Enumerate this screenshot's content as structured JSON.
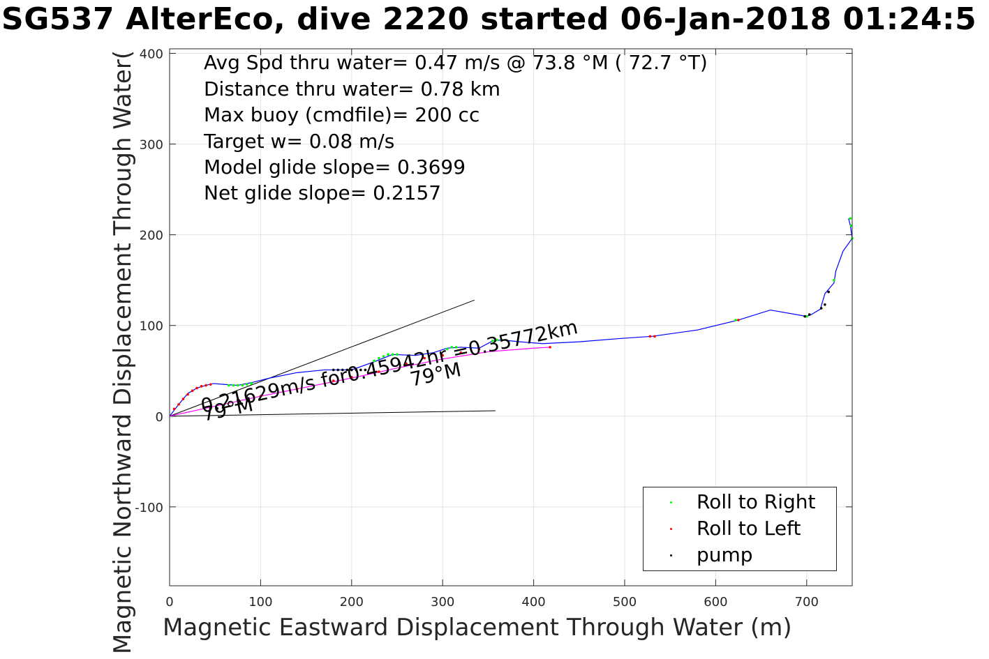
{
  "title": "SG537 AlterEco, dive 2220 started 06-Jan-2018 01:24:5",
  "info_lines": [
    "Avg Spd thru water=  0.47 m/s @  73.8 °M ( 72.7 °T)",
    "Distance thru water=  0.78 km",
    "Max buoy (cmdfile)= 200 cc",
    "Target w= 0.08 m/s",
    "Model glide slope= 0.3699",
    "Net glide slope= 0.2157"
  ],
  "annotations": {
    "heading_1": "79°M",
    "heading_2": "79°M",
    "speed_text": "0.21629m/s for0.45942hr =0.35772km"
  },
  "legend": [
    {
      "label": "Roll to Right",
      "color": "#00ff00"
    },
    {
      "label": "Roll to Left",
      "color": "#ff0000"
    },
    {
      "label": "pump",
      "color": "#000000"
    }
  ],
  "chart_data": {
    "type": "line",
    "title": "SG537 AlterEco, dive 2220 started 06-Jan-2018 01:24:5",
    "xlabel": "Magnetic Eastward Displacement Through Water (m)",
    "ylabel": "Magnetic Northward Displacement Through Water(",
    "xlim": [
      0,
      750
    ],
    "ylim": [
      -187,
      405
    ],
    "xticks": [
      0,
      100,
      200,
      300,
      400,
      500,
      600,
      700
    ],
    "yticks": [
      -100,
      0,
      100,
      200,
      300,
      400
    ],
    "grid": true,
    "legend_position": "bottom-right",
    "series": [
      {
        "color": "#0000ff",
        "x": [
          0,
          10,
          20,
          30,
          40,
          48,
          60,
          75,
          90,
          110,
          140,
          170,
          200,
          225,
          245,
          270,
          290,
          305,
          320,
          340,
          355,
          365,
          385,
          410,
          450,
          500,
          530,
          580,
          625,
          660,
          700,
          705,
          715,
          720,
          725,
          730,
          732,
          740,
          750,
          748,
          746
        ],
        "y": [
          0,
          13,
          25,
          31,
          34,
          36,
          35,
          34,
          37,
          42,
          48,
          51,
          51,
          60,
          68,
          67,
          70,
          75,
          76,
          75,
          83,
          84,
          82,
          80,
          82,
          86,
          88,
          95,
          106,
          117,
          110,
          112,
          118,
          135,
          141,
          147,
          160,
          182,
          196,
          210,
          218
        ]
      },
      {
        "color": "#ff00ff",
        "x": [
          0,
          50,
          100,
          150,
          200,
          250,
          300,
          350,
          400,
          418
        ],
        "y": [
          0,
          11,
          22,
          32,
          42,
          53,
          63,
          71,
          75,
          76
        ]
      }
    ],
    "reference_lines": [
      {
        "x": [
          0,
          335
        ],
        "y": [
          0,
          128
        ]
      },
      {
        "x": [
          0,
          358
        ],
        "y": [
          0,
          6
        ]
      }
    ],
    "markers": {
      "roll_right": {
        "color": "#00ff00",
        "x": [
          65,
          70,
          75,
          80,
          85,
          90,
          225,
          230,
          235,
          240,
          245,
          250,
          305,
          310,
          315,
          355,
          360,
          365,
          622,
          700,
          730,
          748,
          749,
          750
        ],
        "y": [
          34,
          34,
          34,
          34,
          35,
          36,
          61,
          64,
          66,
          68,
          68,
          68,
          74,
          76,
          76,
          83,
          84,
          84,
          106,
          110,
          150,
          218,
          210,
          196
        ]
      },
      "roll_left": {
        "color": "#ff0000",
        "x": [
          5,
          10,
          15,
          20,
          25,
          30,
          35,
          40,
          45,
          60,
          100,
          140,
          180,
          200,
          230,
          260,
          280,
          300,
          320,
          340,
          418,
          528,
          533,
          625
        ],
        "y": [
          8,
          13,
          19,
          24,
          28,
          31,
          33,
          34,
          35,
          9,
          22,
          30,
          39,
          43,
          49,
          58,
          64,
          67,
          70,
          74,
          76,
          88,
          88,
          106
        ]
      },
      "pump": {
        "color": "#000000",
        "x": [
          180,
          185,
          190,
          195,
          200,
          205,
          210,
          215,
          698,
          703,
          716,
          720,
          724
        ],
        "y": [
          51,
          51,
          51,
          51,
          51,
          51,
          51,
          51,
          110,
          112,
          119,
          123,
          137
        ]
      }
    }
  }
}
